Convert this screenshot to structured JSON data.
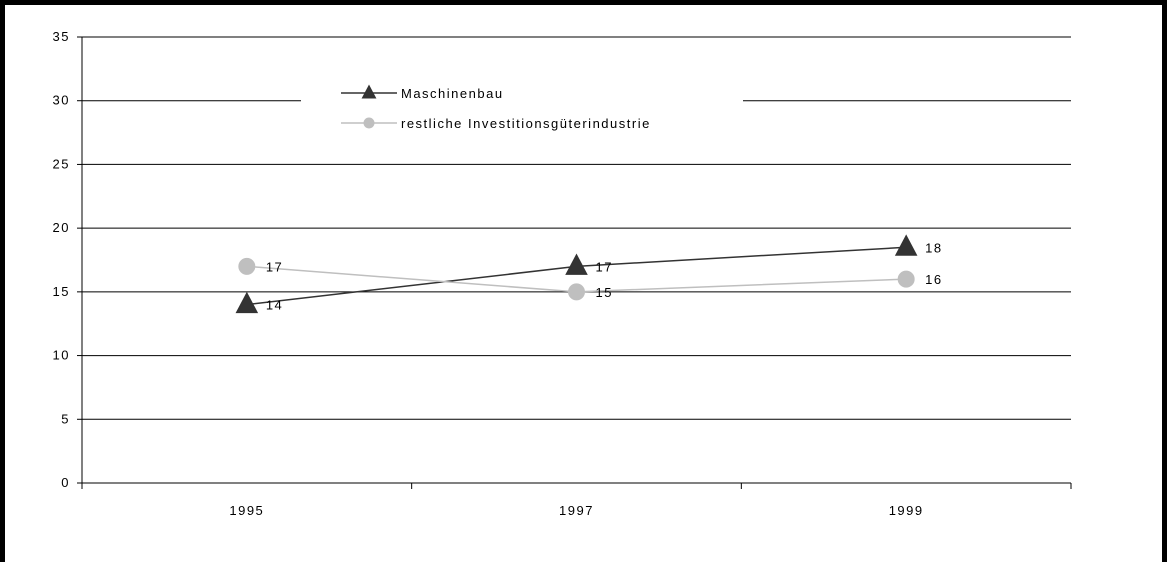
{
  "chart_data": {
    "type": "line",
    "title": "",
    "xlabel": "",
    "ylabel": "",
    "categories": [
      "1995",
      "1997",
      "1999"
    ],
    "ylim": [
      0,
      35
    ],
    "yticks": [
      0,
      5,
      10,
      15,
      20,
      25,
      30,
      35
    ],
    "grid": true,
    "legend_position": "top-center",
    "series": [
      {
        "name": "Maschinenbau",
        "marker": "triangle",
        "color": "#333333",
        "values": [
          14,
          17,
          18.5
        ],
        "labels": [
          "14",
          "17",
          "18"
        ]
      },
      {
        "name": "restliche Investitionsgüterindustrie",
        "marker": "circle",
        "color": "#bfbfbf",
        "values": [
          17,
          15,
          16
        ],
        "labels": [
          "17",
          "15",
          "16"
        ]
      }
    ]
  }
}
